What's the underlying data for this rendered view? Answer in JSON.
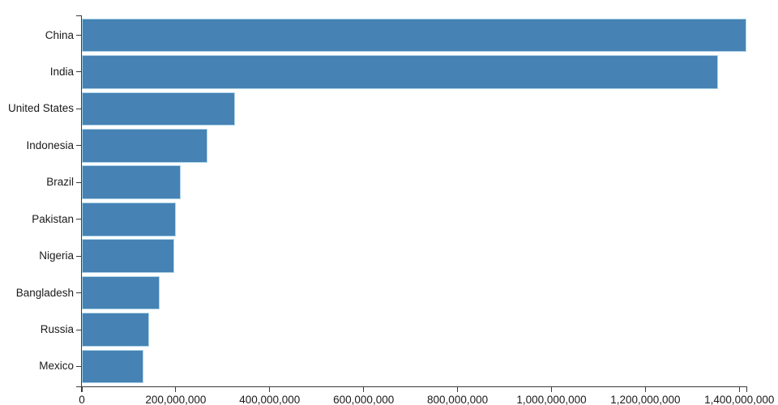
{
  "chart_data": {
    "type": "bar",
    "orientation": "horizontal",
    "title": "",
    "xlabel": "",
    "ylabel": "",
    "categories": [
      "China",
      "India",
      "United States",
      "Indonesia",
      "Brazil",
      "Pakistan",
      "Nigeria",
      "Bangladesh",
      "Russia",
      "Mexico"
    ],
    "values": [
      1415045928,
      1354051854,
      326766748,
      266794980,
      210867954,
      200813818,
      195875237,
      166368149,
      143964709,
      130759074
    ],
    "xlim": [
      0,
      1415045928
    ],
    "x_tick_values": [
      0,
      200000000,
      400000000,
      600000000,
      800000000,
      1000000000,
      1200000000,
      1400000000
    ],
    "x_tick_labels": [
      "0",
      "200,000,000",
      "400,000,000",
      "600,000,000",
      "800,000,000",
      "1,000,000,000",
      "1,200,000,000",
      "1,400,000,000"
    ],
    "grid": false,
    "legend": false,
    "value_labels_visible": false,
    "colors": {
      "bar_fill": "#4682b4",
      "bar_stroke": "#aed4e8",
      "axis_line": "#3a3a3a",
      "tick_text": "#1a1a1a"
    }
  }
}
